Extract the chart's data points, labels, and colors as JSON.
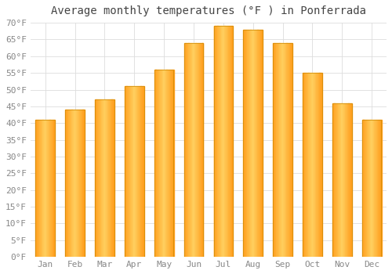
{
  "title": "Average monthly temperatures (°F ) in Ponferrada",
  "months": [
    "Jan",
    "Feb",
    "Mar",
    "Apr",
    "May",
    "Jun",
    "Jul",
    "Aug",
    "Sep",
    "Oct",
    "Nov",
    "Dec"
  ],
  "values": [
    41,
    44,
    47,
    51,
    56,
    64,
    69,
    68,
    64,
    55,
    46,
    41
  ],
  "ylim": [
    0,
    70
  ],
  "ytick_step": 5,
  "background_color": "#FFFFFF",
  "grid_color": "#DDDDDD",
  "title_fontsize": 10,
  "tick_fontsize": 8,
  "bar_edge_color": "#CC8800",
  "bar_center_color": "#FFD060",
  "bar_outer_color": "#FFA020"
}
